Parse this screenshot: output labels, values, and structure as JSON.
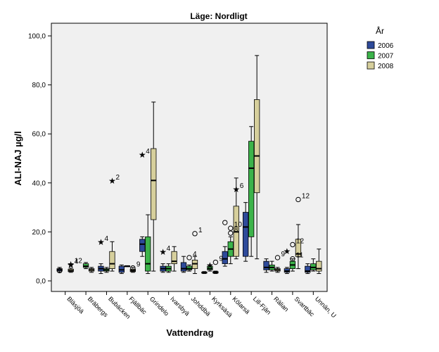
{
  "chart_data": {
    "type": "boxplot",
    "title": "Läge: Nordligt",
    "xlabel": "Vattendrag",
    "ylabel": "ALI-NAJ µg/l",
    "ylim": [
      -3,
      105
    ],
    "yticks": [
      0,
      20,
      40,
      60,
      80,
      100
    ],
    "ytick_labels": [
      "0,0",
      "20,0",
      "40,0",
      "60,0",
      "80,0",
      "100,0"
    ],
    "grid": false,
    "legend": {
      "title": "År",
      "placement": "right"
    },
    "categories": [
      "Bläsjöä",
      "Bräbergs",
      "Bubäcken",
      "Fjällbäc",
      "Grindelo",
      "Ivarsbyä",
      "Johddbä",
      "Kyrksäsä",
      "Kölarsä",
      "Lill-Fjän",
      "Rälian",
      "Svartbäc",
      "Unnän, U"
    ],
    "series": [
      {
        "name": "2006",
        "color": "#2e4a9a",
        "boxes": [
          {
            "min": 3.5,
            "q1": 4,
            "median": 4.5,
            "q3": 5,
            "max": 5.5
          },
          null,
          {
            "min": 3,
            "q1": 4,
            "median": 5,
            "q3": 6,
            "max": 7
          },
          {
            "min": 3,
            "q1": 3.5,
            "median": 4.5,
            "q3": 6,
            "max": 6.5
          },
          {
            "min": 10,
            "q1": 12,
            "median": 15,
            "q3": 17,
            "max": 18
          },
          {
            "min": 3.5,
            "q1": 4,
            "median": 5,
            "q3": 6,
            "max": 7
          },
          {
            "min": 3.5,
            "q1": 4,
            "median": 5,
            "q3": 7.5,
            "max": 10
          },
          {
            "min": 3,
            "q1": 3.2,
            "median": 3.4,
            "q3": 3.6,
            "max": 3.8
          },
          {
            "min": 6,
            "q1": 7,
            "median": 9,
            "q3": 12,
            "max": 14
          },
          {
            "min": 8,
            "q1": 10,
            "median": 22,
            "q3": 28,
            "max": 32
          },
          {
            "min": 3.5,
            "q1": 4.5,
            "median": 5.5,
            "q3": 8,
            "max": 9
          },
          {
            "min": 3,
            "q1": 3.5,
            "median": 4,
            "q3": 5,
            "max": 5.5
          },
          {
            "min": 3,
            "q1": 3.5,
            "median": 4,
            "q3": 6,
            "max": 7
          }
        ]
      },
      {
        "name": "2007",
        "color": "#3cb34a",
        "boxes": [
          null,
          {
            "min": 5,
            "q1": 5.5,
            "median": 6,
            "q3": 7,
            "max": 7.5
          },
          {
            "min": 3.5,
            "q1": 4,
            "median": 4.5,
            "q3": 5,
            "max": 5.5
          },
          {
            "min": 6,
            "q1": 6,
            "median": 6,
            "q3": 6.2,
            "max": 6.2
          },
          {
            "min": 3,
            "q1": 4,
            "median": 7,
            "q3": 18,
            "max": 27
          },
          {
            "min": 3.5,
            "q1": 4,
            "median": 5,
            "q3": 6,
            "max": 7
          },
          {
            "min": 4,
            "q1": 4.5,
            "median": 5,
            "q3": 6,
            "max": 6.5
          },
          {
            "min": 4,
            "q1": 4.5,
            "median": 5,
            "q3": 6,
            "max": 6.5
          },
          {
            "min": 7,
            "q1": 10,
            "median": 13,
            "q3": 16,
            "max": 18
          },
          {
            "min": 10,
            "q1": 18,
            "median": 46,
            "q3": 57,
            "max": 63
          },
          {
            "min": 4,
            "q1": 4.5,
            "median": 5.5,
            "q3": 6.5,
            "max": 8
          },
          {
            "min": 4,
            "q1": 5,
            "median": 6.5,
            "q3": 8,
            "max": 9
          },
          {
            "min": 4,
            "q1": 4.5,
            "median": 5.5,
            "q3": 7,
            "max": 9
          }
        ]
      },
      {
        "name": "2008",
        "color": "#d6cf9c",
        "boxes": [
          {
            "min": 3.5,
            "q1": 3.8,
            "median": 4.2,
            "q3": 4.8,
            "max": 5.2
          },
          {
            "min": 3.5,
            "q1": 4,
            "median": 4.5,
            "q3": 5,
            "max": 5.5
          },
          {
            "min": 4,
            "q1": 5,
            "median": 7,
            "q3": 12,
            "max": 16
          },
          {
            "min": 3.5,
            "q1": 3.8,
            "median": 4.2,
            "q3": 4.8,
            "max": 5.5
          },
          {
            "min": 4,
            "q1": 25,
            "median": 41,
            "q3": 54,
            "max": 73
          },
          {
            "min": 4,
            "q1": 7,
            "median": 8,
            "q3": 12,
            "max": 14
          },
          {
            "min": 3,
            "q1": 5,
            "median": 7,
            "q3": 8.5,
            "max": 10
          },
          {
            "min": 3,
            "q1": 3.2,
            "median": 3.5,
            "q3": 3.8,
            "max": 4
          },
          {
            "min": 9,
            "q1": 10,
            "median": 20,
            "q3": 30.5,
            "max": 42
          },
          {
            "min": 9,
            "q1": 36,
            "median": 51,
            "q3": 74,
            "max": 92
          },
          {
            "min": 3.5,
            "q1": 4,
            "median": 4.5,
            "q3": 5,
            "max": 5.5
          },
          {
            "min": 5,
            "q1": 10,
            "median": 11,
            "q3": 17,
            "max": 23
          },
          {
            "min": 3,
            "q1": 4,
            "median": 5,
            "q3": 8,
            "max": 13
          }
        ]
      }
    ],
    "outliers": [
      {
        "category": 0,
        "series": "2006",
        "value": 4.2,
        "marker": "circle",
        "label": ""
      },
      {
        "category": 0,
        "series": "2008",
        "value": 6.5,
        "marker": "star",
        "label": "4"
      },
      {
        "category": 0,
        "series": "2008",
        "value": 6.8,
        "marker": "star",
        "label": "12"
      },
      {
        "category": 2,
        "series": "2006",
        "value": 15.8,
        "marker": "star",
        "label": "4"
      },
      {
        "category": 2,
        "series": "2008",
        "value": 40.8,
        "marker": "star",
        "label": "2"
      },
      {
        "category": 3,
        "series": "2008",
        "value": 5.3,
        "marker": "circle",
        "label": "9"
      },
      {
        "category": 4,
        "series": "2006",
        "value": 51.5,
        "marker": "star",
        "label": "4"
      },
      {
        "category": 5,
        "series": "2006",
        "value": 11.8,
        "marker": "star",
        "label": "4"
      },
      {
        "category": 6,
        "series": "2007",
        "value": 9.5,
        "marker": "circle",
        "label": "4"
      },
      {
        "category": 6,
        "series": "2008",
        "value": 19.3,
        "marker": "circle",
        "label": "1"
      },
      {
        "category": 7,
        "series": "2007",
        "value": 6.3,
        "marker": "star",
        "label": ""
      },
      {
        "category": 7,
        "series": "2008",
        "value": 7.6,
        "marker": "circle",
        "label": "9"
      },
      {
        "category": 8,
        "series": "2006",
        "value": 23.8,
        "marker": "circle",
        "label": ""
      },
      {
        "category": 8,
        "series": "2007",
        "value": 19.5,
        "marker": "circle",
        "label": "8"
      },
      {
        "category": 8,
        "series": "2007",
        "value": 21.5,
        "marker": "circle",
        "label": "10"
      },
      {
        "category": 8,
        "series": "2008",
        "value": 37.3,
        "marker": "star",
        "label": "6"
      },
      {
        "category": 10,
        "series": "2008",
        "value": 9.5,
        "marker": "circle",
        "label": "9"
      },
      {
        "category": 11,
        "series": "2006",
        "value": 12.0,
        "marker": "star",
        "label": ""
      },
      {
        "category": 11,
        "series": "2007",
        "value": 9.0,
        "marker": "circle",
        "label": "11"
      },
      {
        "category": 11,
        "series": "2007",
        "value": 14.8,
        "marker": "circle",
        "label": "12"
      },
      {
        "category": 11,
        "series": "2008",
        "value": 33.2,
        "marker": "circle",
        "label": "12"
      }
    ]
  }
}
